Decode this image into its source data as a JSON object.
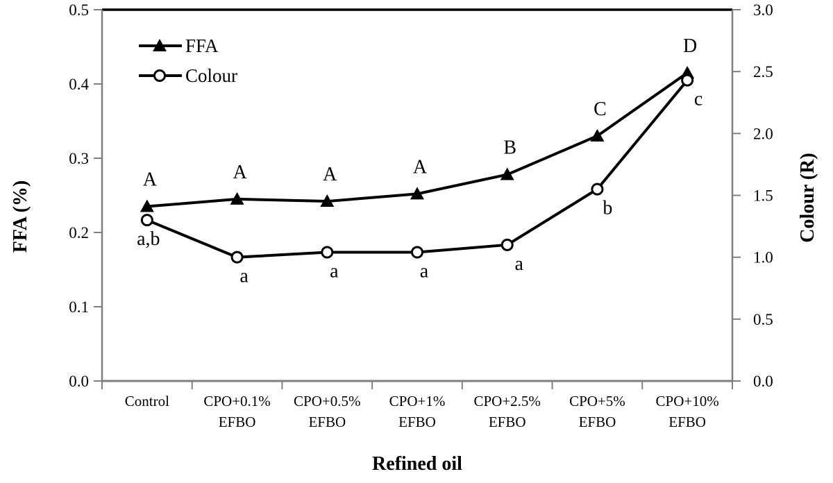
{
  "chart_data": {
    "type": "line",
    "title": "",
    "xlabel": "Refined oil",
    "grid": false,
    "legend_position": "top-left-inside",
    "left_axis": {
      "label": "FFA (%)",
      "min": 0.0,
      "max": 0.5,
      "tick_labels": [
        "0.0",
        "0.1",
        "0.2",
        "0.3",
        "0.4",
        "0.5"
      ],
      "tick_values": [
        0.0,
        0.1,
        0.2,
        0.3,
        0.4,
        0.5
      ]
    },
    "right_axis": {
      "label": "Colour (R)",
      "min": 0.0,
      "max": 3.0,
      "tick_labels": [
        "0.0",
        "0.5",
        "1.0",
        "1.5",
        "2.0",
        "2.5",
        "3.0"
      ],
      "tick_values": [
        0.0,
        0.5,
        1.0,
        1.5,
        2.0,
        2.5,
        3.0
      ]
    },
    "categories": [
      {
        "line1": "Control",
        "line2": ""
      },
      {
        "line1": "CPO+0.1%",
        "line2": "EFBO"
      },
      {
        "line1": "CPO+0.5%",
        "line2": "EFBO"
      },
      {
        "line1": "CPO+1%",
        "line2": "EFBO"
      },
      {
        "line1": "CPO+2.5%",
        "line2": "EFBO"
      },
      {
        "line1": "CPO+5%",
        "line2": "EFBO"
      },
      {
        "line1": "CPO+10%",
        "line2": "EFBO"
      }
    ],
    "series": [
      {
        "name": "FFA",
        "axis": "left",
        "marker": "filled-triangle",
        "values": [
          0.235,
          0.245,
          0.242,
          0.252,
          0.278,
          0.33,
          0.415
        ],
        "point_labels": [
          "A",
          "A",
          "A",
          "A",
          "B",
          "C",
          "D"
        ],
        "label_side": "above"
      },
      {
        "name": "Colour",
        "axis": "right",
        "marker": "open-circle",
        "values": [
          1.3,
          1.0,
          1.04,
          1.04,
          1.1,
          1.55,
          2.43
        ],
        "point_labels": [
          "a,b",
          "a",
          "a",
          "a",
          "a",
          "b",
          "c"
        ],
        "label_side": "below"
      }
    ],
    "legend": {
      "items": [
        "FFA",
        "Colour"
      ]
    }
  },
  "colors": {
    "series_line": "#000000",
    "marker_fill": "#000000",
    "marker_open_fill": "#ffffff",
    "axis_line": "#7f7f7f",
    "top_border": "#000000",
    "text": "#000000",
    "background": "#ffffff"
  }
}
